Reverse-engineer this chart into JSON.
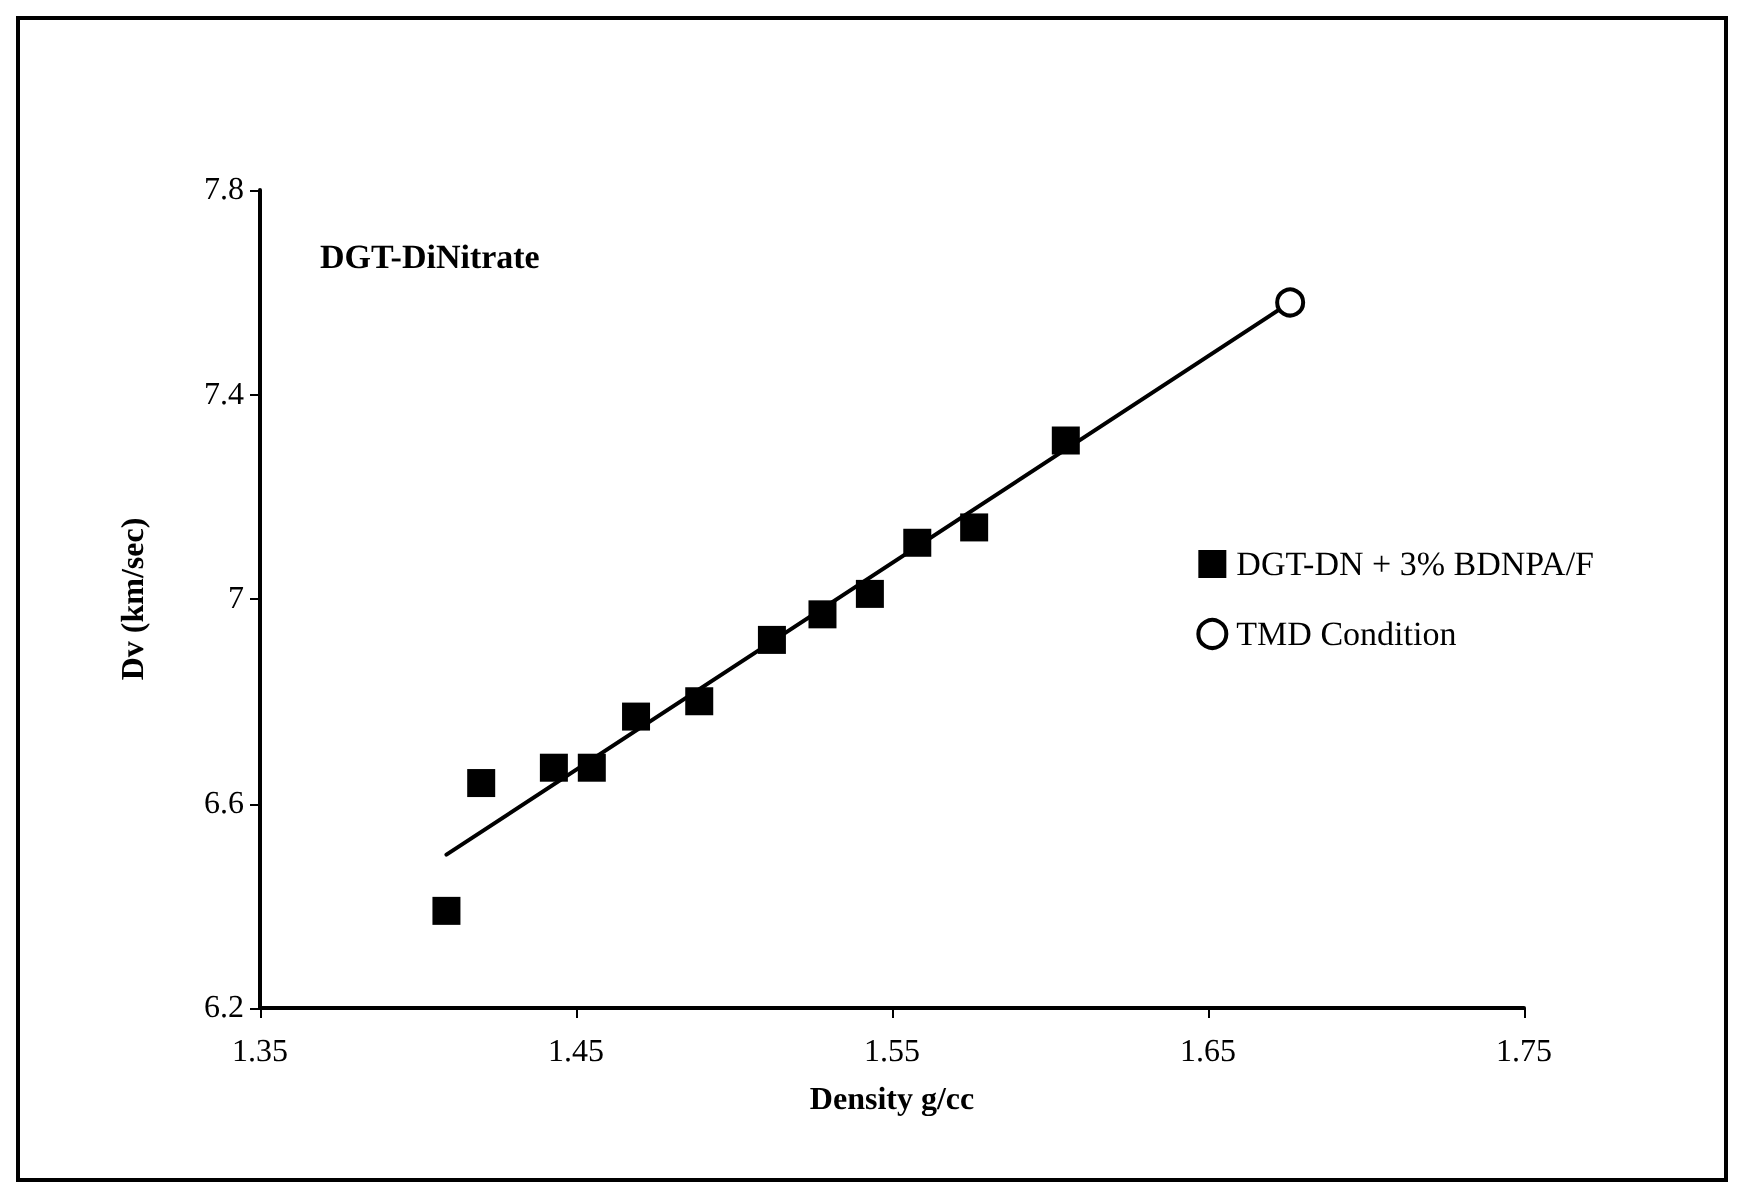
{
  "chart_data": {
    "type": "scatter",
    "title": "DGT-DiNitrate",
    "xlabel": "Density g/cc",
    "ylabel": "Dv (km/sec)",
    "xlim": [
      1.35,
      1.75
    ],
    "xticks": [
      1.35,
      1.45,
      1.55,
      1.65,
      1.75
    ],
    "ylim": [
      6.2,
      7.8
    ],
    "yticks": [
      6.2,
      6.6,
      7,
      7.4,
      7.8
    ],
    "grid": false,
    "legend": "right",
    "series": [
      {
        "name": "DGT-DN + 3% BDNPA/F",
        "marker": "square",
        "color": "#000000",
        "x": [
          1.409,
          1.42,
          1.443,
          1.455,
          1.469,
          1.489,
          1.512,
          1.528,
          1.543,
          1.558,
          1.576,
          1.605
        ],
        "values": [
          6.39,
          6.64,
          6.67,
          6.67,
          6.77,
          6.8,
          6.92,
          6.97,
          7.01,
          7.11,
          7.14,
          7.31
        ]
      },
      {
        "name": "TMD Condition",
        "marker": "circle",
        "color": "#000000",
        "x": [
          1.676
        ],
        "values": [
          7.58
        ]
      },
      {
        "type": "line",
        "marker": "none",
        "line_style": "solid",
        "color": "#000000",
        "x": [
          1.409,
          1.676
        ],
        "values": [
          6.5,
          7.58
        ]
      }
    ]
  }
}
